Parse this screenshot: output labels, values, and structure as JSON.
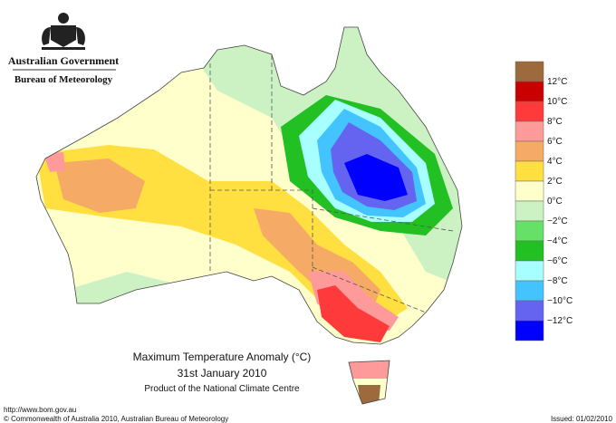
{
  "header": {
    "government": "Australian Government",
    "bureau": "Bureau of Meteorology"
  },
  "title": {
    "line1": "Maximum Temperature Anomaly (°C)",
    "line2": "31st January 2010",
    "line3": "Product of the National Climate Centre"
  },
  "legend": [
    {
      "color": "#9c6a3c"
    },
    {
      "label": "12°C",
      "color": "#c80000"
    },
    {
      "label": "10°C",
      "color": "#ff3a3a"
    },
    {
      "label": "8°C",
      "color": "#ff9a9a"
    },
    {
      "label": "6°C",
      "color": "#f5aa66"
    },
    {
      "label": "4°C",
      "color": "#ffe040"
    },
    {
      "label": "2°C",
      "color": "#ffffcc"
    },
    {
      "label": "0°C",
      "color": "#ccf2c4"
    },
    {
      "label": "−2°C",
      "color": "#66e066"
    },
    {
      "label": "−4°C",
      "color": "#22c022"
    },
    {
      "label": "−6°C",
      "color": "#a8ffff"
    },
    {
      "label": "−8°C",
      "color": "#44c4ff"
    },
    {
      "label": "−10°C",
      "color": "#6464f0"
    },
    {
      "label": "−12°C",
      "color": "#0000ff"
    }
  ],
  "footer": {
    "url": "http://www.bom.gov.au",
    "copyright": "© Commonwealth of Australia 2010, Australian Bureau of Meteorology",
    "issued": "Issued: 01/02/2010"
  }
}
